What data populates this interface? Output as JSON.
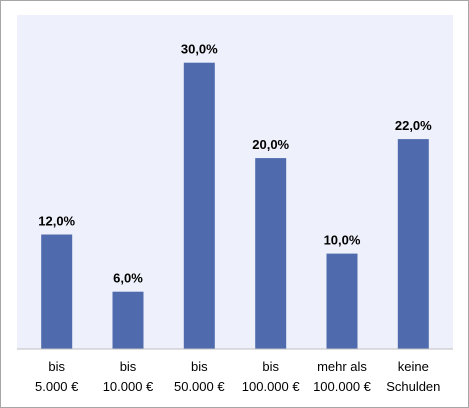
{
  "chart_data": {
    "type": "bar",
    "categories": [
      [
        "bis",
        "5.000 €"
      ],
      [
        "bis",
        "10.000 €"
      ],
      [
        "bis",
        "50.000 €"
      ],
      [
        "bis",
        "100.000 €"
      ],
      [
        "mehr als",
        "100.000 €"
      ],
      [
        "keine",
        "Schulden"
      ]
    ],
    "values": [
      12.0,
      6.0,
      30.0,
      20.0,
      10.0,
      22.0
    ],
    "data_labels": [
      "12,0%",
      "6,0%",
      "30,0%",
      "20,0%",
      "10,0%",
      "22,0%"
    ],
    "ylim": [
      0,
      35
    ],
    "grid": false,
    "legend": "none",
    "title": "",
    "xlabel": "",
    "ylabel": "",
    "colors": {
      "bar": "#4f6bae",
      "plot_background": "#eef1fb",
      "axis": "#bfbfbf",
      "frame": "#a6a6a6"
    }
  }
}
